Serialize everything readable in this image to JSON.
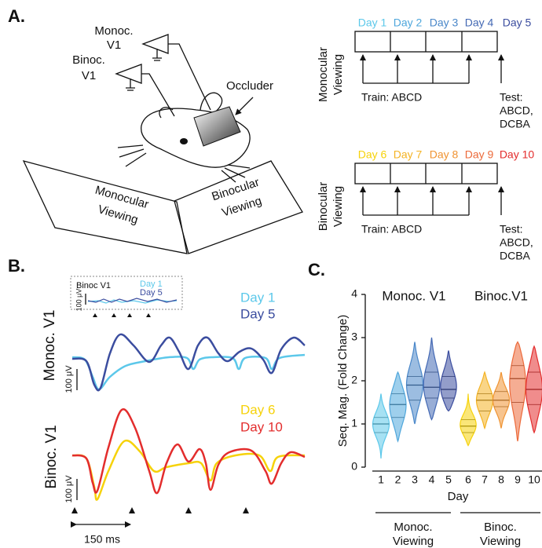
{
  "panel_a": {
    "label": "A.",
    "monoc_amp": [
      "Monoc.",
      "V1"
    ],
    "binoc_amp": [
      "Binoc.",
      "V1"
    ],
    "occluder": "Occluder",
    "monocular_screen": [
      "Monocular",
      "Viewing"
    ],
    "binocular_screen": [
      "Binocular",
      "Viewing"
    ],
    "monocular_timeline": {
      "title": [
        "Monocular",
        "Viewing"
      ],
      "days": [
        "Day 1",
        "Day 2",
        "Day 3",
        "Day 4",
        "Day 5"
      ],
      "train": "Train: ABCD",
      "test": [
        "Test:",
        "ABCD,",
        "DCBA"
      ]
    },
    "binocular_timeline": {
      "title": [
        "Binocular",
        "Viewing"
      ],
      "days": [
        "Day 6",
        "Day 7",
        "Day 8",
        "Day 9",
        "Day 10"
      ],
      "train": "Train: ABCD",
      "test": [
        "Test:",
        "ABCD,",
        "DCBA"
      ]
    }
  },
  "panel_b": {
    "label": "B.",
    "inset": {
      "title": "Binoc V1",
      "legend": [
        "Day 1",
        "Day 5"
      ],
      "scale": "100 μV"
    },
    "monoc": {
      "title": "Monoc. V1",
      "legend": [
        "Day 1",
        "Day 5"
      ],
      "scale": "100 μV"
    },
    "binoc": {
      "title": "Binoc. V1",
      "legend": [
        "Day 6",
        "Day 10"
      ],
      "scale": "100 μV"
    },
    "time_scale": "150 ms"
  },
  "panel_c": {
    "label": "C.",
    "group_titles": [
      "Monoc. V1",
      "Binoc.V1"
    ],
    "group_labels": [
      [
        "Monoc.",
        "Viewing"
      ],
      [
        "Binoc.",
        "Viewing"
      ]
    ]
  },
  "chart_data": {
    "type": "violin",
    "xlabel": "Day",
    "ylabel": "Seq. Mag. (Fold Change)",
    "categories": [
      "1",
      "2",
      "3",
      "4",
      "5",
      "6",
      "7",
      "8",
      "9",
      "10"
    ],
    "colors": [
      "#5cc8ea",
      "#4fa7dc",
      "#4a87c9",
      "#4469b4",
      "#3b4d9f",
      "#f6d20a",
      "#f4b324",
      "#f09433",
      "#ec6a3a",
      "#e32d2d"
    ],
    "min": [
      0.2,
      0.6,
      1.0,
      1.1,
      1.3,
      0.5,
      0.9,
      0.9,
      0.6,
      0.8
    ],
    "q1": [
      0.8,
      1.15,
      1.55,
      1.6,
      1.6,
      0.8,
      1.3,
      1.4,
      1.5,
      1.45
    ],
    "median": [
      1.0,
      1.45,
      1.9,
      1.85,
      1.8,
      0.95,
      1.55,
      1.55,
      2.05,
      1.8
    ],
    "q3": [
      1.15,
      1.7,
      2.1,
      2.2,
      2.1,
      1.1,
      1.7,
      1.75,
      2.35,
      2.2
    ],
    "max": [
      1.7,
      2.2,
      2.9,
      3.0,
      2.7,
      1.7,
      2.2,
      2.2,
      2.9,
      2.8
    ],
    "ylim": [
      0,
      4
    ],
    "yticks": [
      0,
      1,
      2,
      3,
      4
    ]
  }
}
